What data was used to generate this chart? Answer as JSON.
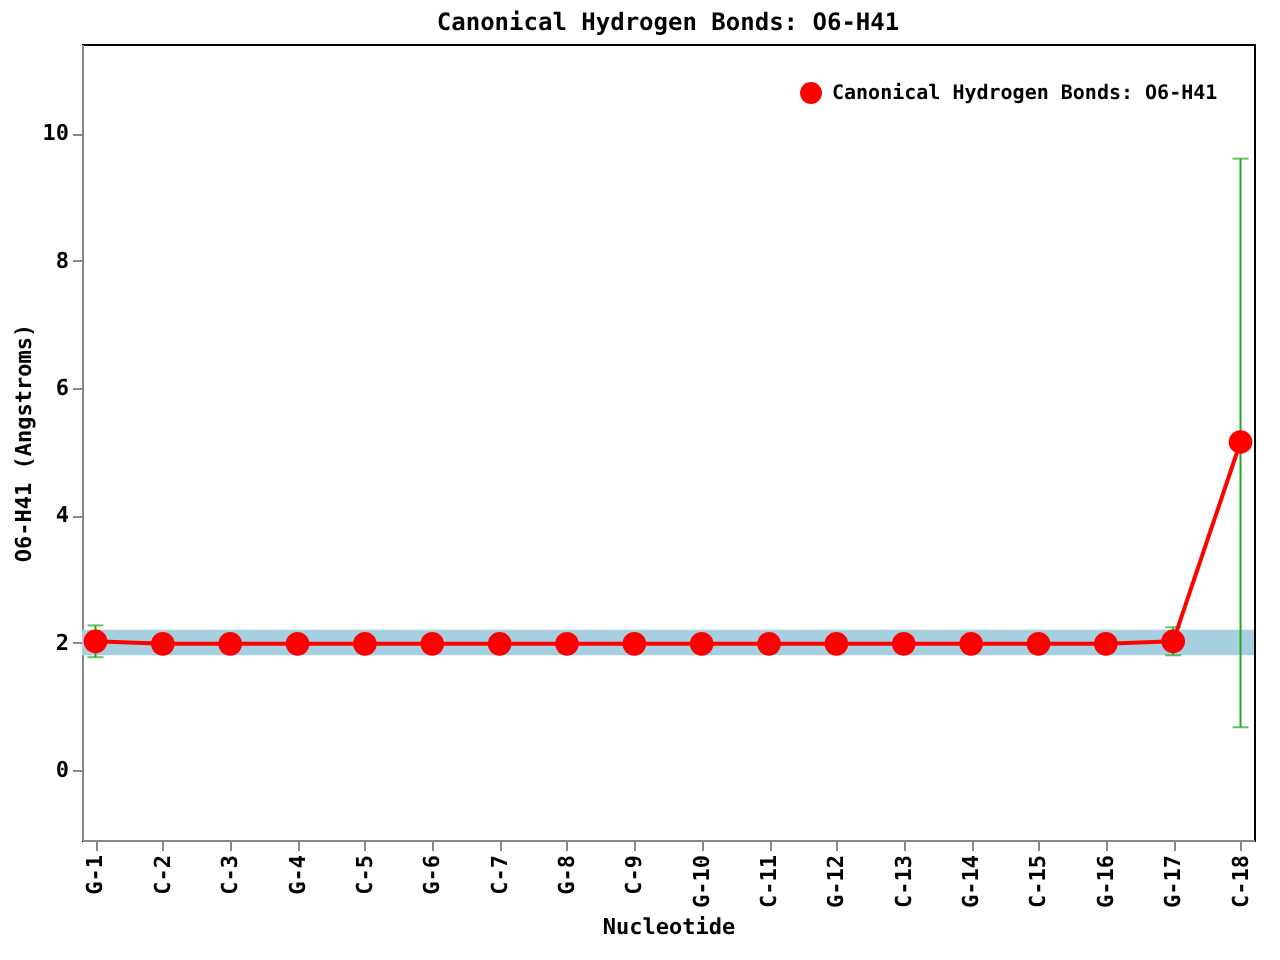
{
  "chart_data": {
    "type": "line",
    "title": "Canonical Hydrogen Bonds: O6-H41",
    "xlabel": "Nucleotide",
    "ylabel": "O6-H41 (Angstroms)",
    "categories": [
      "G-1",
      "C-2",
      "C-3",
      "G-4",
      "C-5",
      "G-6",
      "C-7",
      "G-8",
      "C-9",
      "G-10",
      "C-11",
      "G-12",
      "C-13",
      "G-14",
      "C-15",
      "G-16",
      "G-17",
      "C-18"
    ],
    "series": [
      {
        "name": "Canonical Hydrogen Bonds: O6-H41",
        "color": "#ff0000",
        "values": [
          2.02,
          1.98,
          1.98,
          1.98,
          1.98,
          1.98,
          1.98,
          1.98,
          1.98,
          1.98,
          1.98,
          1.98,
          1.98,
          1.98,
          1.98,
          1.98,
          2.02,
          5.15
        ],
        "errors": [
          0.25,
          null,
          null,
          null,
          null,
          null,
          null,
          null,
          null,
          null,
          null,
          null,
          null,
          null,
          null,
          null,
          0.22,
          [
            0.67,
            9.6
          ]
        ]
      }
    ],
    "ylim": [
      -1.1,
      11.4
    ],
    "yticks": [
      0,
      2,
      4,
      6,
      8,
      10
    ],
    "bands": [
      {
        "axis": "y",
        "from": 1.8,
        "to": 2.2,
        "color": "#a6cfe0"
      }
    ],
    "marker": "circle",
    "legend": "top right",
    "grid": false
  }
}
